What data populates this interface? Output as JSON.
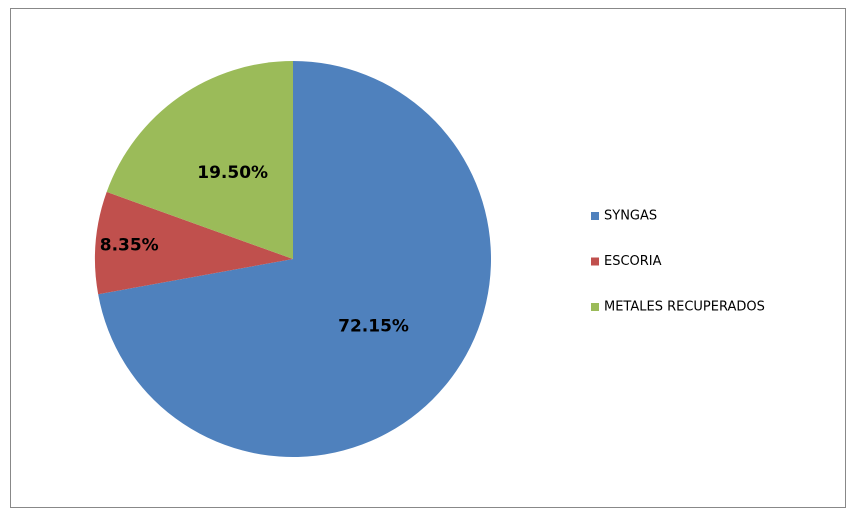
{
  "chart_data": {
    "type": "pie",
    "categories": [
      "SYNGAS",
      "ESCORIA",
      "METALES RECUPERADOS"
    ],
    "values": [
      72.15,
      8.35,
      19.5
    ],
    "value_labels": [
      "72.15%",
      "8.35%",
      "19.50%"
    ],
    "colors": [
      "#4f81bd",
      "#c0504d",
      "#9bbb59"
    ],
    "legend": "right"
  }
}
